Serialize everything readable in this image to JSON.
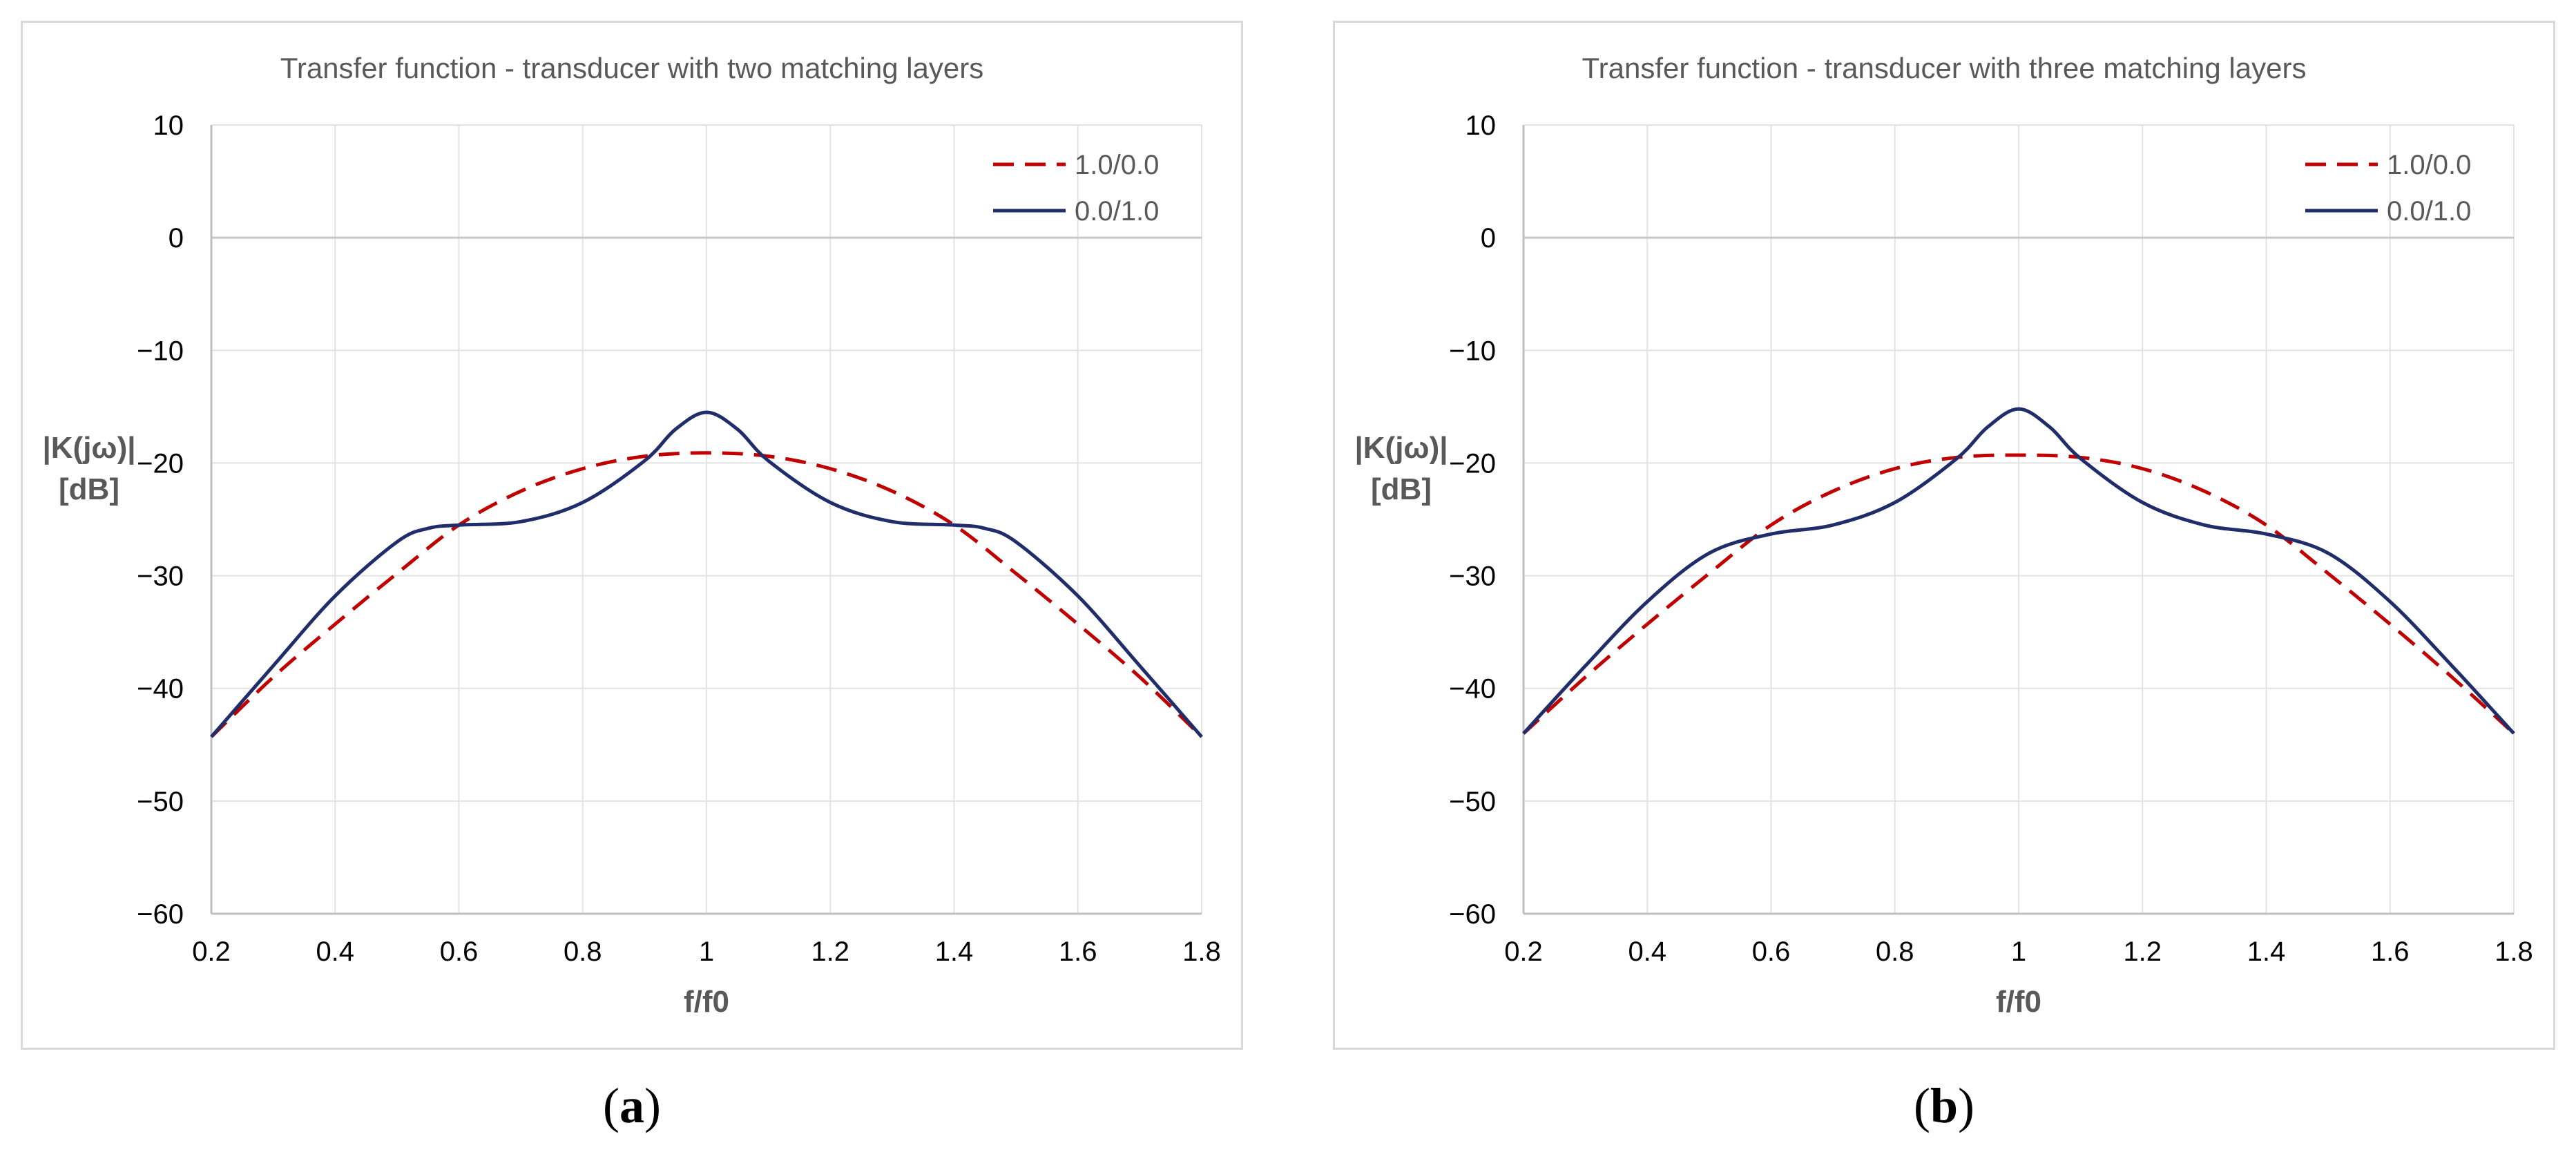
{
  "chart_data": [
    {
      "type": "line",
      "title": "Transfer function - transducer with two matching layers",
      "xlabel": "f/f0",
      "ylabel": [
        "|K(jω)|",
        "[dB]"
      ],
      "xlim": [
        0.2,
        1.8
      ],
      "ylim": [
        -60,
        10
      ],
      "xticks": [
        0.2,
        0.4,
        0.6,
        0.8,
        1,
        1.2,
        1.4,
        1.6,
        1.8
      ],
      "xtick_labels": [
        "0.2",
        "0.4",
        "0.6",
        "0.8",
        "1",
        "1.2",
        "1.4",
        "1.6",
        "1.8"
      ],
      "yticks": [
        10,
        0,
        -10,
        -20,
        -30,
        -40,
        -50,
        -60
      ],
      "ytick_labels": [
        "10",
        "0",
        "−10",
        "−20",
        "−30",
        "−40",
        "−50",
        "−60"
      ],
      "grid": true,
      "legend_position": "top-right",
      "series": [
        {
          "name": "1.0/0.0",
          "color": "#c00000",
          "style": "dashed",
          "x": [
            0.2,
            0.3,
            0.4,
            0.5,
            0.6,
            0.7,
            0.8,
            0.9,
            1.0,
            1.1,
            1.2,
            1.3,
            1.4,
            1.5,
            1.6,
            1.7,
            1.8
          ],
          "y": [
            -44.3,
            -39.0,
            -34.3,
            -29.8,
            -25.5,
            -22.5,
            -20.5,
            -19.4,
            -19.1,
            -19.4,
            -20.5,
            -22.5,
            -25.5,
            -29.8,
            -34.3,
            -39.0,
            -44.3
          ]
        },
        {
          "name": "0.0/1.0",
          "color": "#1f2d6b",
          "style": "solid",
          "x": [
            0.2,
            0.3,
            0.4,
            0.5,
            0.55,
            0.6,
            0.7,
            0.8,
            0.9,
            0.95,
            1.0,
            1.05,
            1.1,
            1.2,
            1.3,
            1.4,
            1.45,
            1.5,
            1.6,
            1.7,
            1.8
          ],
          "y": [
            -44.3,
            -38.0,
            -31.8,
            -27.0,
            -25.8,
            -25.5,
            -25.2,
            -23.5,
            -19.8,
            -17.0,
            -15.5,
            -17.0,
            -19.8,
            -23.5,
            -25.2,
            -25.5,
            -25.8,
            -27.0,
            -31.8,
            -38.0,
            -44.3
          ]
        }
      ]
    },
    {
      "type": "line",
      "title": "Transfer function - transducer with three matching layers",
      "xlabel": "f/f0",
      "ylabel": [
        "|K(jω)|",
        "[dB]"
      ],
      "xlim": [
        0.2,
        1.8
      ],
      "ylim": [
        -60,
        10
      ],
      "xticks": [
        0.2,
        0.4,
        0.6,
        0.8,
        1,
        1.2,
        1.4,
        1.6,
        1.8
      ],
      "xtick_labels": [
        "0.2",
        "0.4",
        "0.6",
        "0.8",
        "1",
        "1.2",
        "1.4",
        "1.6",
        "1.8"
      ],
      "yticks": [
        10,
        0,
        -10,
        -20,
        -30,
        -40,
        -50,
        -60
      ],
      "ytick_labels": [
        "10",
        "0",
        "−10",
        "−20",
        "−30",
        "−40",
        "−50",
        "−60"
      ],
      "grid": true,
      "legend_position": "top-right",
      "series": [
        {
          "name": "1.0/0.0",
          "color": "#c00000",
          "style": "dashed",
          "x": [
            0.2,
            0.3,
            0.4,
            0.5,
            0.6,
            0.7,
            0.8,
            0.9,
            1.0,
            1.1,
            1.2,
            1.3,
            1.4,
            1.5,
            1.6,
            1.7,
            1.8
          ],
          "y": [
            -44.0,
            -39.0,
            -34.3,
            -29.8,
            -25.5,
            -22.5,
            -20.5,
            -19.5,
            -19.3,
            -19.5,
            -20.5,
            -22.5,
            -25.5,
            -29.8,
            -34.3,
            -39.0,
            -44.0
          ]
        },
        {
          "name": "0.0/1.0",
          "color": "#1f2d6b",
          "style": "solid",
          "x": [
            0.2,
            0.3,
            0.4,
            0.5,
            0.6,
            0.7,
            0.8,
            0.9,
            0.95,
            1.0,
            1.05,
            1.1,
            1.2,
            1.3,
            1.4,
            1.5,
            1.6,
            1.7,
            1.8
          ],
          "y": [
            -44.0,
            -38.0,
            -32.3,
            -28.0,
            -26.3,
            -25.5,
            -23.5,
            -19.6,
            -16.8,
            -15.2,
            -16.8,
            -19.6,
            -23.5,
            -25.5,
            -26.3,
            -28.0,
            -32.3,
            -38.0,
            -44.0
          ]
        }
      ]
    }
  ],
  "captions": [
    "a",
    "b"
  ]
}
